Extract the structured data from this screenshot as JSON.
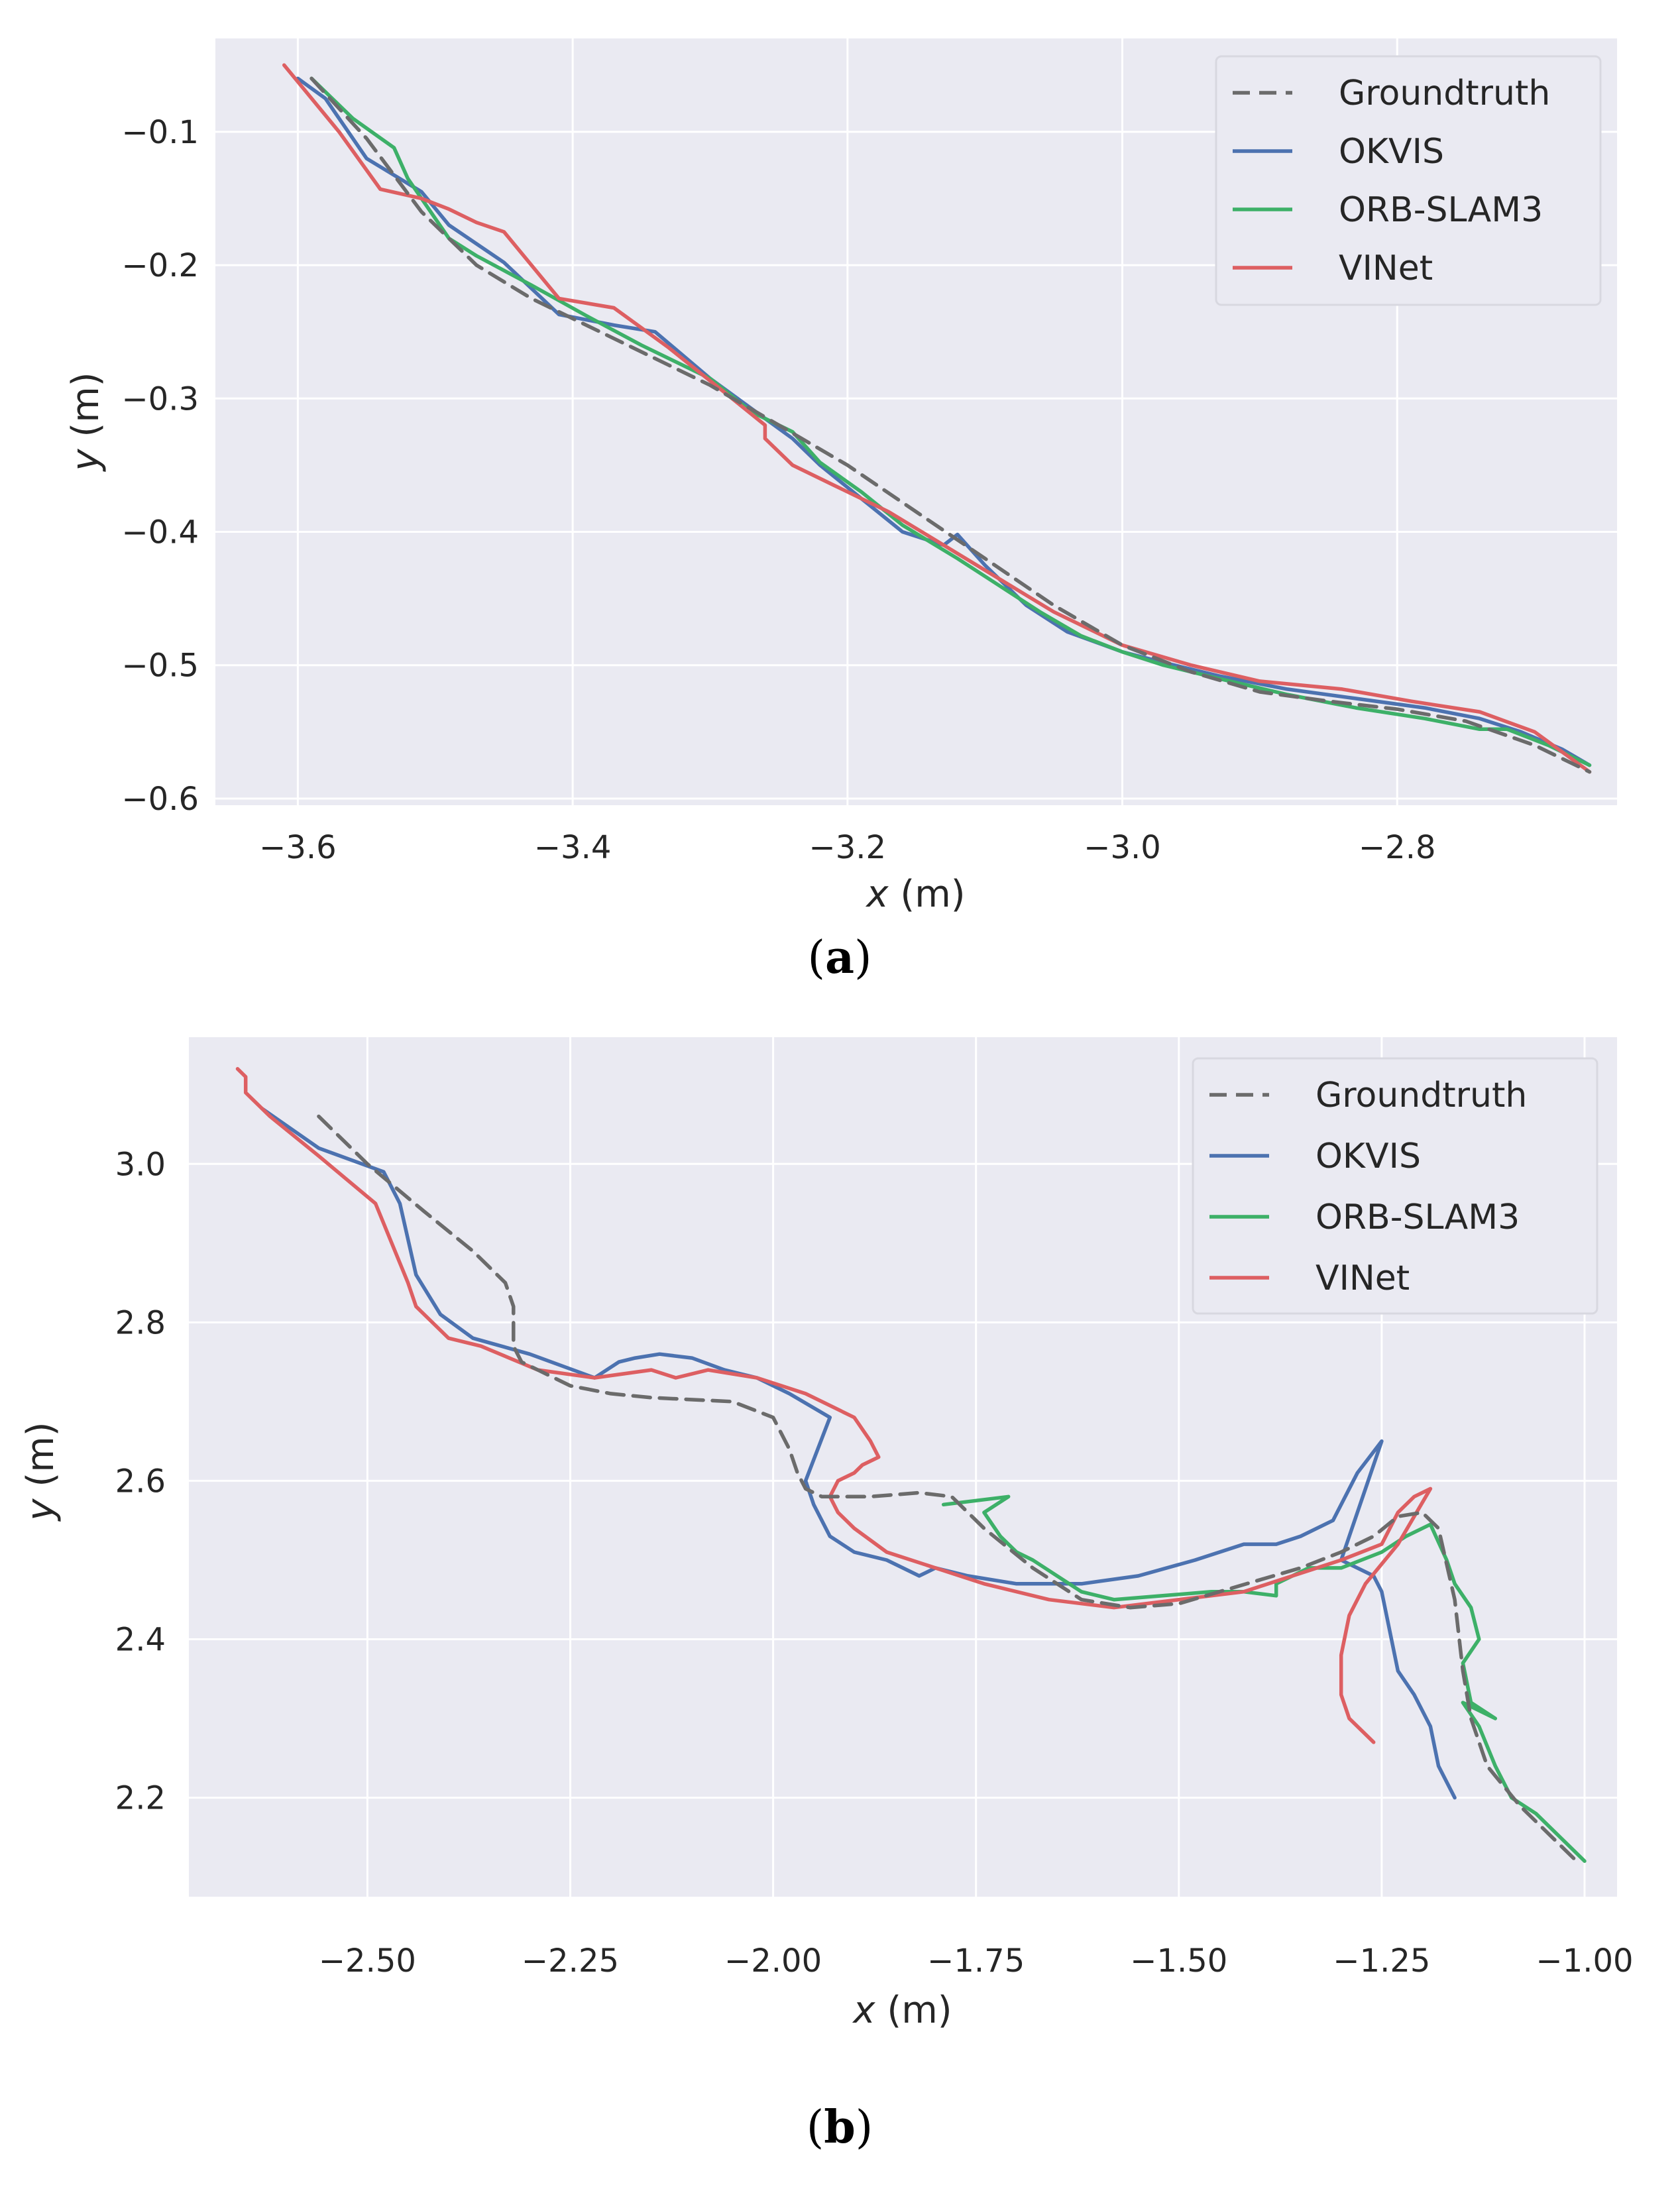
{
  "chart_data": [
    {
      "type": "line",
      "caption_letter": "a",
      "xlabel_var": "x",
      "xlabel_unit": " (m)",
      "ylabel_var": "y",
      "ylabel_unit": " (m)",
      "xlim": [
        -3.66,
        -2.64
      ],
      "ylim": [
        -0.605,
        -0.03
      ],
      "xticks": [
        -3.6,
        -3.4,
        -3.2,
        -3.0,
        -2.8
      ],
      "xtick_labels": [
        "−3.6",
        "−3.4",
        "−3.2",
        "−3.0",
        "−2.8"
      ],
      "yticks": [
        -0.1,
        -0.2,
        -0.3,
        -0.4,
        -0.5,
        -0.6
      ],
      "ytick_labels": [
        "−0.1",
        "−0.2",
        "−0.3",
        "−0.4",
        "−0.5",
        "−0.6"
      ],
      "legend_position": "upper-right",
      "series": [
        {
          "name": "Groundtruth",
          "color": "#6b6b6b",
          "dashed": true,
          "x": [
            -3.59,
            -3.55,
            -3.51,
            -3.47,
            -3.43,
            -3.4,
            -3.35,
            -3.3,
            -3.25,
            -3.2,
            -3.15,
            -3.1,
            -3.05,
            -3.0,
            -2.95,
            -2.9,
            -2.85,
            -2.8,
            -2.75,
            -2.7,
            -2.66
          ],
          "y": [
            -0.06,
            -0.105,
            -0.16,
            -0.2,
            -0.225,
            -0.24,
            -0.265,
            -0.29,
            -0.32,
            -0.35,
            -0.385,
            -0.42,
            -0.455,
            -0.485,
            -0.505,
            -0.52,
            -0.527,
            -0.533,
            -0.542,
            -0.56,
            -0.58
          ]
        },
        {
          "name": "OKVIS",
          "color": "#4c72b0",
          "dashed": false,
          "x": [
            -3.6,
            -3.58,
            -3.55,
            -3.51,
            -3.49,
            -3.45,
            -3.41,
            -3.37,
            -3.34,
            -3.3,
            -3.26,
            -3.24,
            -3.22,
            -3.19,
            -3.16,
            -3.13,
            -3.12,
            -3.1,
            -3.07,
            -3.04,
            -3.0,
            -2.97,
            -2.93,
            -2.88,
            -2.83,
            -2.78,
            -2.74,
            -2.71,
            -2.68,
            -2.66
          ],
          "y": [
            -0.06,
            -0.075,
            -0.12,
            -0.145,
            -0.17,
            -0.198,
            -0.237,
            -0.245,
            -0.25,
            -0.285,
            -0.315,
            -0.33,
            -0.35,
            -0.375,
            -0.4,
            -0.41,
            -0.402,
            -0.425,
            -0.455,
            -0.475,
            -0.49,
            -0.498,
            -0.508,
            -0.518,
            -0.525,
            -0.532,
            -0.54,
            -0.55,
            -0.563,
            -0.575
          ]
        },
        {
          "name": "ORB-SLAM3",
          "color": "#3db068",
          "dashed": false,
          "x": [
            -3.59,
            -3.56,
            -3.53,
            -3.52,
            -3.49,
            -3.47,
            -3.43,
            -3.39,
            -3.35,
            -3.3,
            -3.27,
            -3.24,
            -3.22,
            -3.19,
            -3.16,
            -3.12,
            -3.09,
            -3.06,
            -3.03,
            -3.0,
            -2.97,
            -2.93,
            -2.88,
            -2.83,
            -2.78,
            -2.74,
            -2.72,
            -2.69,
            -2.66
          ],
          "y": [
            -0.06,
            -0.09,
            -0.112,
            -0.135,
            -0.18,
            -0.193,
            -0.215,
            -0.238,
            -0.26,
            -0.285,
            -0.31,
            -0.325,
            -0.348,
            -0.37,
            -0.395,
            -0.42,
            -0.44,
            -0.46,
            -0.478,
            -0.49,
            -0.5,
            -0.51,
            -0.522,
            -0.532,
            -0.54,
            -0.548,
            -0.548,
            -0.56,
            -0.575
          ]
        },
        {
          "name": "VINet",
          "color": "#dd5f62",
          "dashed": false,
          "x": [
            -3.61,
            -3.57,
            -3.54,
            -3.51,
            -3.49,
            -3.47,
            -3.45,
            -3.41,
            -3.37,
            -3.33,
            -3.29,
            -3.26,
            -3.26,
            -3.24,
            -3.21,
            -3.17,
            -3.13,
            -3.09,
            -3.05,
            -3.0,
            -2.95,
            -2.9,
            -2.84,
            -2.79,
            -2.74,
            -2.7,
            -2.66
          ],
          "y": [
            -0.05,
            -0.1,
            -0.143,
            -0.15,
            -0.158,
            -0.168,
            -0.175,
            -0.225,
            -0.232,
            -0.262,
            -0.295,
            -0.32,
            -0.33,
            -0.35,
            -0.365,
            -0.385,
            -0.41,
            -0.435,
            -0.46,
            -0.485,
            -0.5,
            -0.512,
            -0.518,
            -0.527,
            -0.535,
            -0.55,
            -0.58
          ]
        }
      ]
    },
    {
      "type": "line",
      "caption_letter": "b",
      "xlabel_var": "x",
      "xlabel_unit": " (m)",
      "ylabel_var": "y",
      "ylabel_unit": " (m)",
      "xlim": [
        -2.72,
        -0.96
      ],
      "ylim": [
        2.075,
        3.16
      ],
      "xticks": [
        -2.5,
        -2.25,
        -2.0,
        -1.75,
        -1.5,
        -1.25,
        -1.0
      ],
      "xtick_labels": [
        "−2.50",
        "−2.25",
        "−2.00",
        "−1.75",
        "−1.50",
        "−1.25",
        "−1.00"
      ],
      "yticks": [
        3.0,
        2.8,
        2.6,
        2.4,
        2.2
      ],
      "ytick_labels": [
        "3.0",
        "2.8",
        "2.6",
        "2.4",
        "2.2"
      ],
      "legend_position": "upper-right",
      "series": [
        {
          "name": "Groundtruth",
          "color": "#6b6b6b",
          "dashed": true,
          "x": [
            -2.56,
            -2.5,
            -2.43,
            -2.37,
            -2.33,
            -2.32,
            -2.32,
            -2.31,
            -2.25,
            -2.2,
            -2.15,
            -2.05,
            -2.0,
            -1.98,
            -1.97,
            -1.96,
            -1.94,
            -1.88,
            -1.82,
            -1.78,
            -1.74,
            -1.68,
            -1.62,
            -1.56,
            -1.5,
            -1.45,
            -1.4,
            -1.35,
            -1.3,
            -1.26,
            -1.23,
            -1.2,
            -1.18,
            -1.16,
            -1.15,
            -1.14,
            -1.12,
            -1.08,
            -1.04,
            -1.01
          ],
          "y": [
            3.06,
            3.0,
            2.94,
            2.89,
            2.85,
            2.82,
            2.77,
            2.75,
            2.72,
            2.71,
            2.705,
            2.7,
            2.68,
            2.64,
            2.61,
            2.59,
            2.58,
            2.58,
            2.585,
            2.58,
            2.54,
            2.49,
            2.45,
            2.44,
            2.445,
            2.46,
            2.475,
            2.49,
            2.51,
            2.53,
            2.555,
            2.56,
            2.54,
            2.45,
            2.36,
            2.3,
            2.24,
            2.19,
            2.15,
            2.12
          ]
        },
        {
          "name": "OKVIS",
          "color": "#4c72b0",
          "dashed": false,
          "x": [
            -2.63,
            -2.56,
            -2.48,
            -2.46,
            -2.44,
            -2.41,
            -2.37,
            -2.3,
            -2.22,
            -2.19,
            -2.17,
            -2.14,
            -2.1,
            -2.06,
            -2.02,
            -1.98,
            -1.93,
            -1.96,
            -1.95,
            -1.93,
            -1.9,
            -1.86,
            -1.82,
            -1.8,
            -1.76,
            -1.7,
            -1.62,
            -1.55,
            -1.48,
            -1.42,
            -1.38,
            -1.35,
            -1.31,
            -1.28,
            -1.25,
            -1.3,
            -1.26,
            -1.25,
            -1.23,
            -1.21,
            -1.19,
            -1.18,
            -1.16
          ],
          "y": [
            3.07,
            3.02,
            2.99,
            2.95,
            2.86,
            2.81,
            2.78,
            2.76,
            2.73,
            2.75,
            2.755,
            2.76,
            2.755,
            2.74,
            2.73,
            2.71,
            2.68,
            2.6,
            2.57,
            2.53,
            2.51,
            2.5,
            2.48,
            2.49,
            2.48,
            2.47,
            2.47,
            2.48,
            2.5,
            2.52,
            2.52,
            2.53,
            2.55,
            2.61,
            2.65,
            2.5,
            2.48,
            2.46,
            2.36,
            2.33,
            2.29,
            2.24,
            2.2
          ]
        },
        {
          "name": "ORB-SLAM3",
          "color": "#3db068",
          "dashed": false,
          "x": [
            -1.79,
            -1.75,
            -1.71,
            -1.74,
            -1.72,
            -1.7,
            -1.68,
            -1.65,
            -1.62,
            -1.58,
            -1.52,
            -1.46,
            -1.42,
            -1.38,
            -1.38,
            -1.34,
            -1.3,
            -1.25,
            -1.22,
            -1.19,
            -1.17,
            -1.16,
            -1.14,
            -1.13,
            -1.15,
            -1.14,
            -1.11,
            -1.15,
            -1.13,
            -1.11,
            -1.09,
            -1.06,
            -1.03,
            -1.0
          ],
          "y": [
            2.57,
            2.575,
            2.58,
            2.56,
            2.53,
            2.51,
            2.5,
            2.48,
            2.46,
            2.45,
            2.455,
            2.46,
            2.46,
            2.455,
            2.47,
            2.49,
            2.49,
            2.51,
            2.53,
            2.545,
            2.5,
            2.47,
            2.44,
            2.4,
            2.37,
            2.32,
            2.3,
            2.32,
            2.29,
            2.24,
            2.2,
            2.18,
            2.15,
            2.12
          ]
        },
        {
          "name": "VINet",
          "color": "#dd5f62",
          "dashed": false,
          "x": [
            -2.66,
            -2.65,
            -2.65,
            -2.62,
            -2.56,
            -2.49,
            -2.47,
            -2.45,
            -2.44,
            -2.4,
            -2.36,
            -2.29,
            -2.22,
            -2.15,
            -2.12,
            -2.08,
            -2.02,
            -1.96,
            -1.9,
            -1.88,
            -1.87,
            -1.89,
            -1.9,
            -1.92,
            -1.93,
            -1.92,
            -1.9,
            -1.86,
            -1.8,
            -1.74,
            -1.66,
            -1.58,
            -1.5,
            -1.42,
            -1.36,
            -1.3,
            -1.25,
            -1.23,
            -1.21,
            -1.19,
            -1.23,
            -1.27,
            -1.29,
            -1.3,
            -1.3,
            -1.29,
            -1.26
          ],
          "y": [
            3.12,
            3.11,
            3.09,
            3.06,
            3.01,
            2.95,
            2.9,
            2.85,
            2.82,
            2.78,
            2.77,
            2.74,
            2.73,
            2.74,
            2.73,
            2.74,
            2.73,
            2.71,
            2.68,
            2.65,
            2.63,
            2.62,
            2.61,
            2.6,
            2.58,
            2.56,
            2.54,
            2.51,
            2.49,
            2.47,
            2.45,
            2.44,
            2.45,
            2.46,
            2.48,
            2.5,
            2.52,
            2.56,
            2.58,
            2.59,
            2.52,
            2.47,
            2.43,
            2.38,
            2.33,
            2.3,
            2.27
          ]
        }
      ]
    }
  ]
}
